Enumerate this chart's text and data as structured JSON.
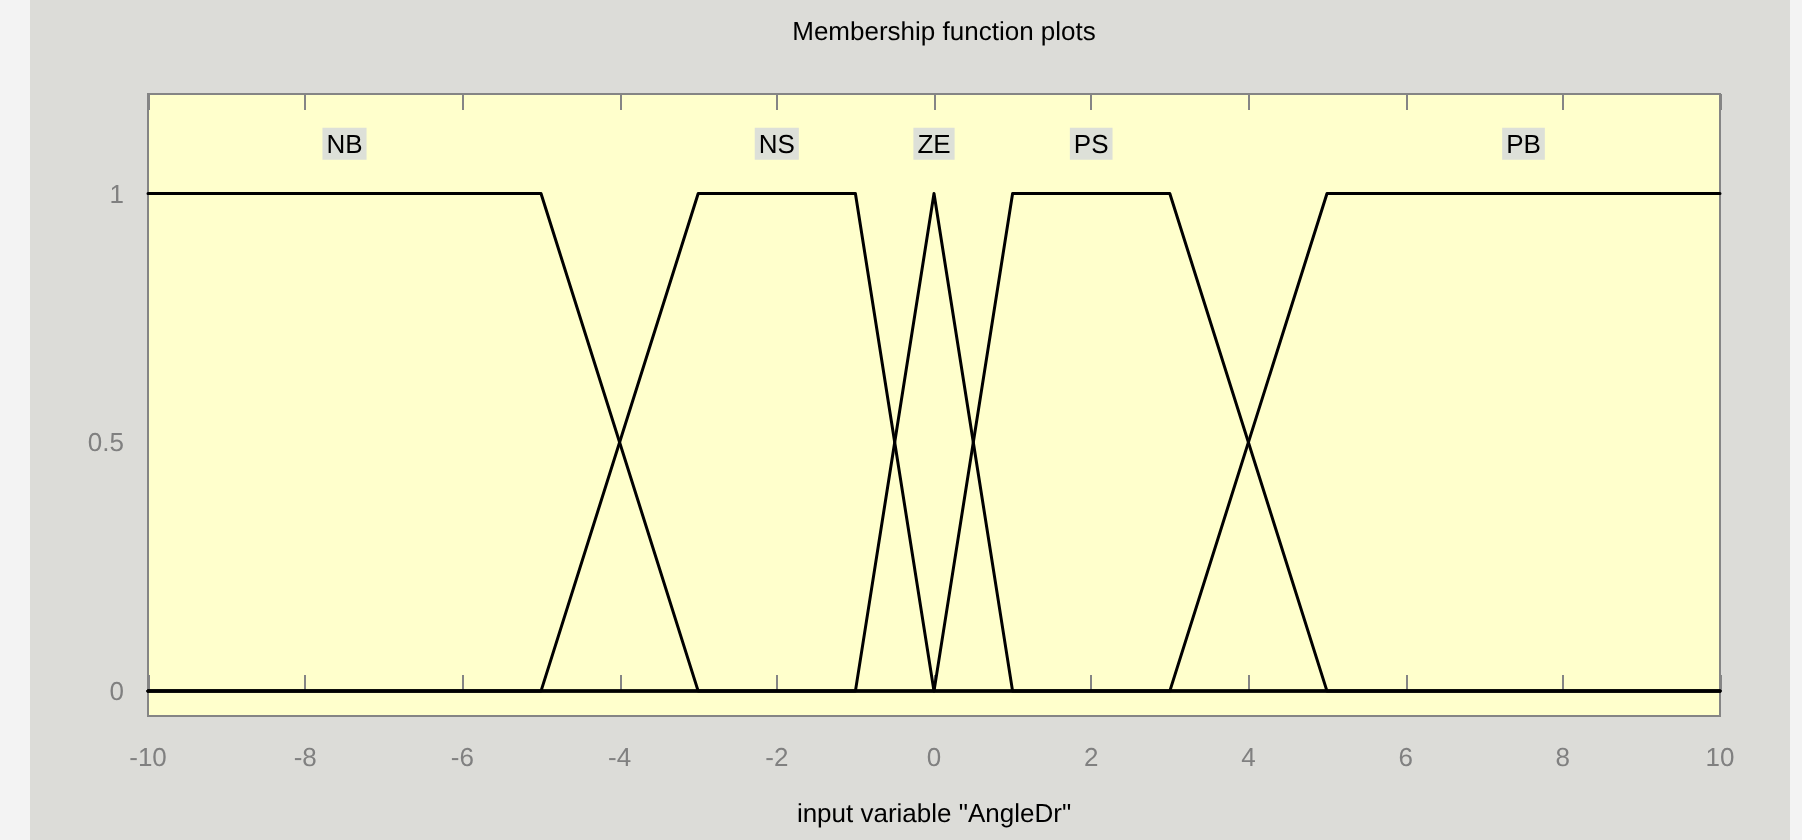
{
  "chart_data": {
    "type": "line",
    "title": "Membership function plots",
    "xlabel": "input variable \"AngleDr\"",
    "series": [
      {
        "name": "NB",
        "color": "#000000",
        "x": [
          -10,
          -5,
          -3,
          10
        ],
        "values": [
          1,
          1,
          0,
          0
        ]
      },
      {
        "name": "NS",
        "color": "#000000",
        "x": [
          -10,
          -5,
          -3,
          -1,
          0,
          10
        ],
        "values": [
          0,
          0,
          1,
          1,
          0,
          0
        ]
      },
      {
        "name": "ZE",
        "color": "#000000",
        "x": [
          -10,
          -1,
          0,
          1,
          10
        ],
        "values": [
          0,
          0,
          1,
          0,
          0
        ]
      },
      {
        "name": "PS",
        "color": "#000000",
        "x": [
          -10,
          0,
          1,
          3,
          5,
          10
        ],
        "values": [
          0,
          0,
          1,
          1,
          0,
          0
        ]
      },
      {
        "name": "PB",
        "color": "#000000",
        "x": [
          -10,
          3,
          5,
          10
        ],
        "values": [
          0,
          0,
          1,
          1
        ]
      }
    ],
    "xlim": [
      -10,
      10
    ],
    "xticks": [
      -10,
      -8,
      -6,
      -4,
      -2,
      0,
      2,
      4,
      6,
      8,
      10
    ],
    "ylim": [
      -0.05,
      1.2
    ],
    "yticks": [
      0,
      0.5,
      1
    ],
    "grid": false,
    "legend": false,
    "marker": "none",
    "line_style": "solid"
  }
}
